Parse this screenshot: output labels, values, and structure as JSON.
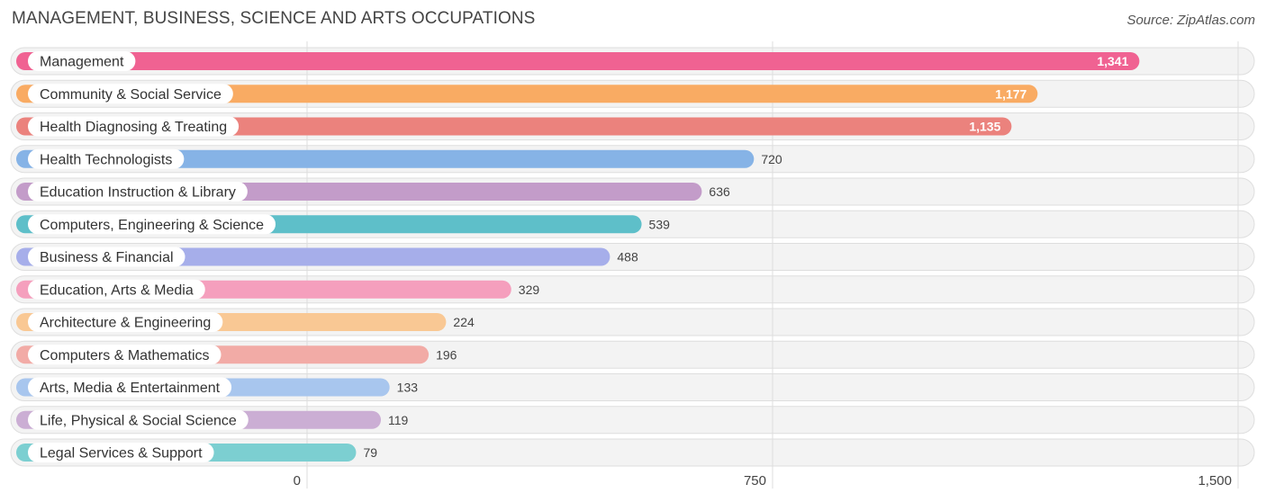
{
  "header": {
    "title": "MANAGEMENT, BUSINESS, SCIENCE AND ARTS OCCUPATIONS",
    "source": "Source: ZipAtlas.com"
  },
  "chart_data": {
    "type": "bar",
    "orientation": "horizontal",
    "title": "MANAGEMENT, BUSINESS, SCIENCE AND ARTS OCCUPATIONS",
    "xlabel": "",
    "ylabel": "",
    "xlim": [
      0,
      1500
    ],
    "ticks": [
      0,
      750,
      1500
    ],
    "tick_labels": [
      "0",
      "750",
      "1,500"
    ],
    "grid": true,
    "categories": [
      "Management",
      "Community & Social Service",
      "Health Diagnosing & Treating",
      "Health Technologists",
      "Education Instruction & Library",
      "Computers, Engineering & Science",
      "Business & Financial",
      "Education, Arts & Media",
      "Architecture & Engineering",
      "Computers & Mathematics",
      "Arts, Media & Entertainment",
      "Life, Physical & Social Science",
      "Legal Services & Support"
    ],
    "values": [
      1341,
      1177,
      1135,
      720,
      636,
      539,
      488,
      329,
      224,
      196,
      133,
      119,
      79
    ],
    "value_labels": [
      "1,341",
      "1,177",
      "1,135",
      "720",
      "636",
      "539",
      "488",
      "329",
      "224",
      "196",
      "133",
      "119",
      "79"
    ],
    "colors": [
      "#f06292",
      "#f9ab63",
      "#eb827d",
      "#86b3e6",
      "#c39cc9",
      "#5ebfc9",
      "#a6aeea",
      "#f59fbd",
      "#f9c894",
      "#f2aba6",
      "#a8c6ee",
      "#cbaed4",
      "#7ccfd1"
    ]
  }
}
